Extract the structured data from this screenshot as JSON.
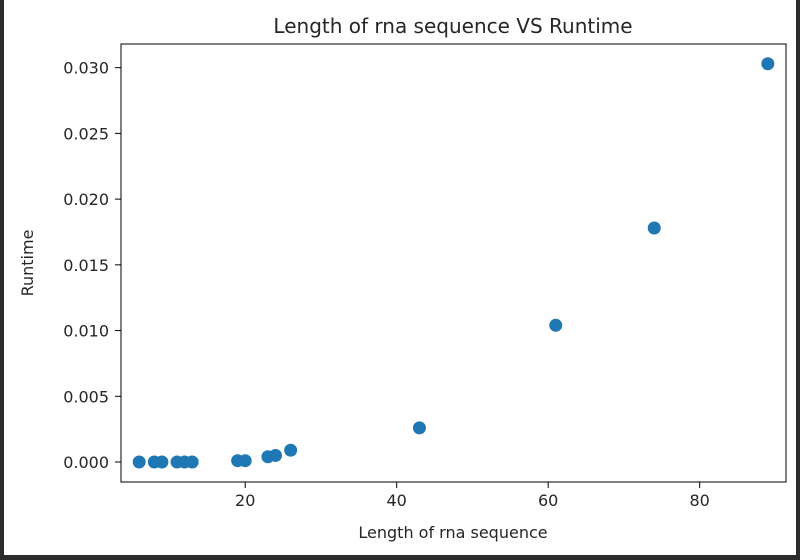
{
  "chart_data": {
    "type": "scatter",
    "title": "Length of rna sequence VS Runtime",
    "xlabel": "Length of rna sequence",
    "ylabel": "Runtime",
    "xlim": [
      3.6,
      91.4
    ],
    "ylim": [
      -0.00152,
      0.0318
    ],
    "xticks": [
      20,
      40,
      60,
      80
    ],
    "yticks": [
      0.0,
      0.005,
      0.01,
      0.015,
      0.02,
      0.025,
      0.03
    ],
    "ytick_labels": [
      "0.000",
      "0.005",
      "0.010",
      "0.015",
      "0.020",
      "0.025",
      "0.030"
    ],
    "marker_color": "#1f77b4",
    "grid": false,
    "points": [
      {
        "x": 6,
        "y": 0.0
      },
      {
        "x": 8,
        "y": 0.0
      },
      {
        "x": 9,
        "y": 0.0
      },
      {
        "x": 11,
        "y": 0.0
      },
      {
        "x": 12,
        "y": 0.0
      },
      {
        "x": 13,
        "y": 0.0
      },
      {
        "x": 19,
        "y": 0.0001
      },
      {
        "x": 20,
        "y": 0.0001
      },
      {
        "x": 23,
        "y": 0.0004
      },
      {
        "x": 24,
        "y": 0.0005
      },
      {
        "x": 26,
        "y": 0.0009
      },
      {
        "x": 43,
        "y": 0.0026
      },
      {
        "x": 61,
        "y": 0.0104
      },
      {
        "x": 74,
        "y": 0.0178
      },
      {
        "x": 89,
        "y": 0.0303
      }
    ]
  }
}
